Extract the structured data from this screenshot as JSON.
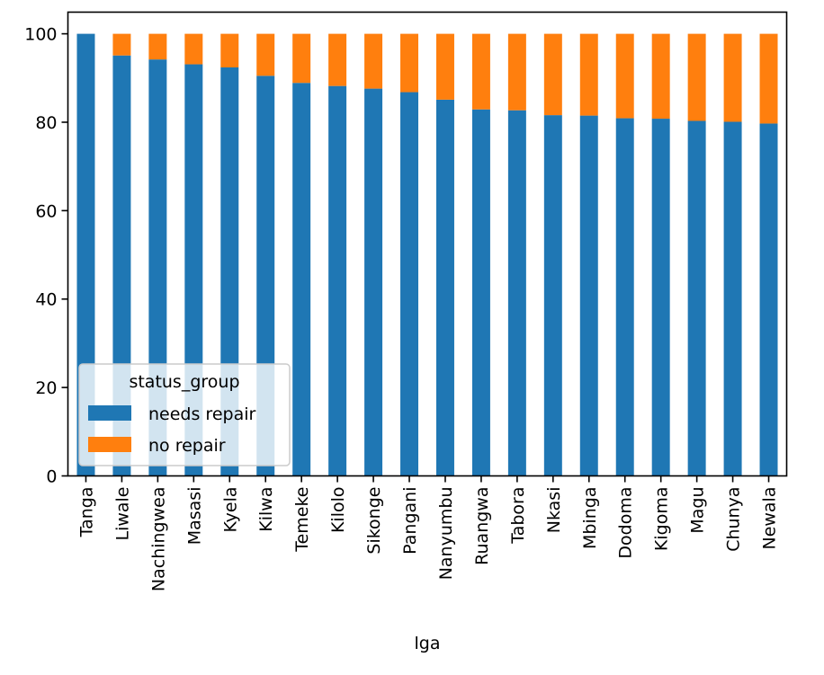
{
  "chart_data": {
    "type": "bar",
    "stacked": true,
    "title": "",
    "xlabel": "lga",
    "ylabel": "",
    "ylim": [
      0,
      104.9
    ],
    "yticks": [
      0,
      20,
      40,
      60,
      80,
      100
    ],
    "grid": false,
    "legend": {
      "title": "status_group",
      "placement": "lower-left"
    },
    "categories": [
      "Tanga",
      "Liwale",
      "Nachingwea",
      "Masasi",
      "Kyela",
      "Kilwa",
      "Temeke",
      "Kilolo",
      "Sikonge",
      "Pangani",
      "Nanyumbu",
      "Ruangwa",
      "Tabora",
      "Nkasi",
      "Mbinga",
      "Dodoma",
      "Kigoma",
      "Magu",
      "Chunya",
      "Newala"
    ],
    "series": [
      {
        "name": "needs repair",
        "color": "#1f77b4",
        "values": [
          100,
          95.1,
          94.2,
          93.1,
          92.4,
          90.5,
          88.9,
          88.2,
          87.6,
          86.8,
          85.1,
          82.9,
          82.7,
          81.6,
          81.5,
          80.9,
          80.8,
          80.3,
          80.1,
          79.7
        ]
      },
      {
        "name": "no repair",
        "color": "#ff7f0e",
        "values": [
          0,
          4.9,
          5.8,
          6.9,
          7.6,
          9.5,
          11.1,
          11.8,
          12.4,
          13.2,
          14.9,
          17.1,
          17.3,
          18.4,
          18.5,
          19.1,
          19.2,
          19.7,
          19.9,
          20.3
        ]
      }
    ]
  }
}
